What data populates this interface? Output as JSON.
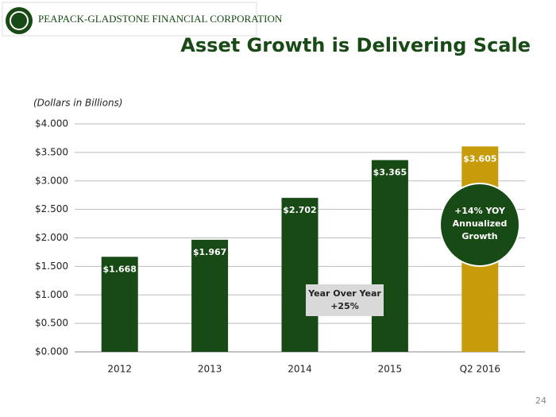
{
  "header": {
    "company": "PEAPACK-GLADSTONE FINANCIAL CORPORATION",
    "page_number": "24"
  },
  "chart_data": {
    "type": "bar",
    "title": "Asset Growth is Delivering Scale",
    "subtitle": "(Dollars in Billions)",
    "categories": [
      "2012",
      "2013",
      "2014",
      "2015",
      "Q2 2016"
    ],
    "values": [
      1.668,
      1.967,
      2.702,
      3.365,
      3.605
    ],
    "value_labels": [
      "$1.668",
      "$1.967",
      "$2.702",
      "$3.365",
      "$3.605"
    ],
    "colors": [
      "#174a14",
      "#174a14",
      "#174a14",
      "#174a14",
      "#c89b0a"
    ],
    "ylim": [
      0,
      4
    ],
    "yticks": [
      {
        "value": 0,
        "label": "$0.000"
      },
      {
        "value": 0.5,
        "label": "$0.500"
      },
      {
        "value": 1,
        "label": "$1.000"
      },
      {
        "value": 1.5,
        "label": "$1.500"
      },
      {
        "value": 2,
        "label": "$2.000"
      },
      {
        "value": 2.5,
        "label": "$2.500"
      },
      {
        "value": 3,
        "label": "$3.000"
      },
      {
        "value": 3.5,
        "label": "$3.500"
      },
      {
        "value": 4,
        "label": "$4.000"
      }
    ],
    "grid": true,
    "annotations": [
      {
        "lines": [
          "Year Over Year",
          "+25%"
        ]
      },
      {
        "lines": [
          "+14% YOY",
          "Annualized",
          "Growth"
        ]
      }
    ]
  }
}
